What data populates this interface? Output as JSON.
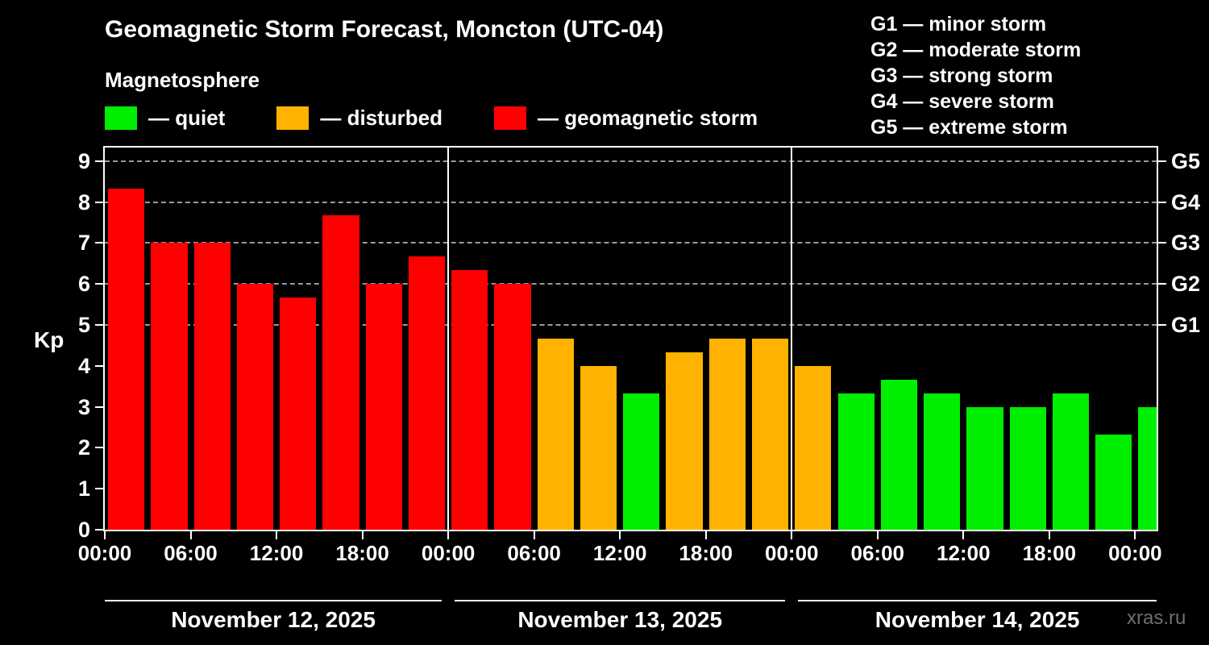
{
  "header": {
    "title": "Geomagnetic Storm Forecast, Moncton (UTC-04)",
    "subtitle": "Magnetosphere"
  },
  "kp_legend": [
    {
      "key": "quiet",
      "label": "— quiet",
      "color": "#00ee00"
    },
    {
      "key": "disturbed",
      "label": "— disturbed",
      "color": "#ffb300"
    },
    {
      "key": "storm",
      "label": "— geomagnetic storm",
      "color": "#ff0000"
    }
  ],
  "g_scale_legend": [
    "G1 — minor storm",
    "G2 — moderate storm",
    "G3 — strong storm",
    "G4 — severe storm",
    "G5 — extreme storm"
  ],
  "watermark": "xras.ru",
  "chart_data": {
    "type": "bar",
    "title": "Geomagnetic Storm Forecast, Moncton (UTC-04)",
    "subtitle": "Magnetosphere",
    "xlabel": "",
    "ylabel": "Kp",
    "ylim": [
      0,
      9.33
    ],
    "x_hours_total": 73.5,
    "bar_interval_hours": 3,
    "values": [
      8.33,
      7.0,
      7.0,
      6.0,
      5.67,
      7.67,
      6.0,
      6.67,
      6.33,
      6.0,
      4.67,
      4.0,
      3.33,
      4.33,
      4.67,
      4.67,
      4.0,
      3.33,
      3.67,
      3.33,
      3.0,
      3.0,
      3.33,
      2.33,
      3.0
    ],
    "thresholds": {
      "disturbed_min": 4,
      "storm_min": 5
    },
    "y_ticks": [
      0,
      1,
      2,
      3,
      4,
      5,
      6,
      7,
      8,
      9
    ],
    "gridline_levels": [
      5,
      6,
      7,
      8,
      9
    ],
    "right_axis": [
      {
        "kp": 5,
        "label": "G1"
      },
      {
        "kp": 6,
        "label": "G2"
      },
      {
        "kp": 7,
        "label": "G3"
      },
      {
        "kp": 8,
        "label": "G4"
      },
      {
        "kp": 9,
        "label": "G5"
      }
    ],
    "x_ticks": [
      {
        "hour": 0,
        "label": "00:00"
      },
      {
        "hour": 6,
        "label": "06:00"
      },
      {
        "hour": 12,
        "label": "12:00"
      },
      {
        "hour": 18,
        "label": "18:00"
      },
      {
        "hour": 24,
        "label": "00:00"
      },
      {
        "hour": 30,
        "label": "06:00"
      },
      {
        "hour": 36,
        "label": "12:00"
      },
      {
        "hour": 42,
        "label": "18:00"
      },
      {
        "hour": 48,
        "label": "00:00"
      },
      {
        "hour": 54,
        "label": "06:00"
      },
      {
        "hour": 60,
        "label": "12:00"
      },
      {
        "hour": 66,
        "label": "18:00"
      },
      {
        "hour": 72,
        "label": "00:00"
      }
    ],
    "day_separator_hours": [
      24,
      48
    ],
    "day_labels": [
      "November 12, 2025",
      "November 13, 2025",
      "November 14, 2025"
    ],
    "legend_position": "top-left",
    "grid": "dashed horizontal at G-levels only"
  }
}
